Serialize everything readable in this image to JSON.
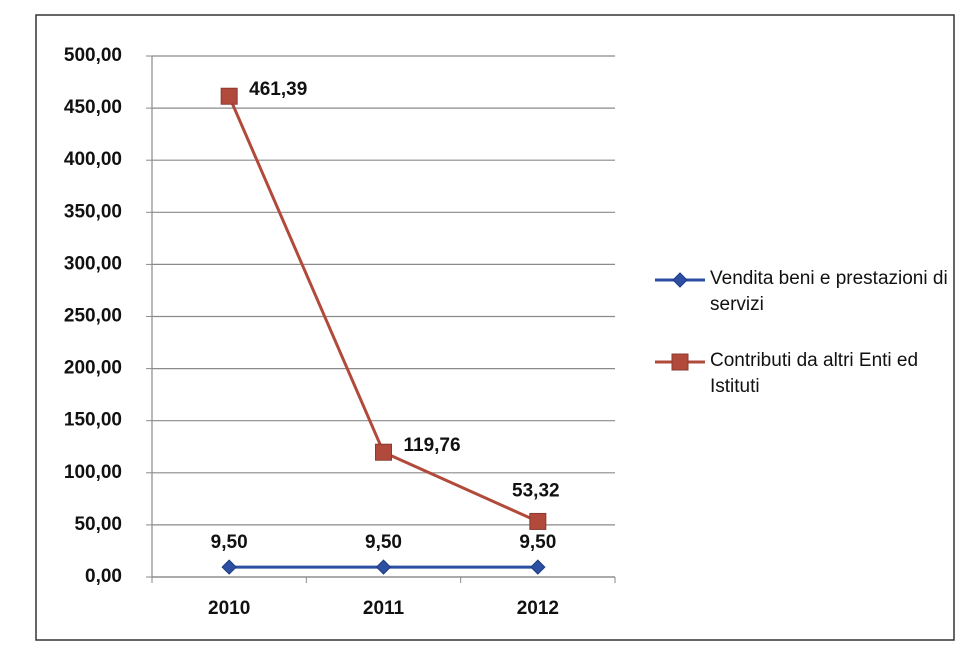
{
  "chart_data": {
    "type": "line",
    "categories": [
      "2010",
      "2011",
      "2012"
    ],
    "series": [
      {
        "name": "Vendita beni e prestazioni di servizi",
        "color": "#2c4fa3",
        "marker": "diamond",
        "values": [
          9.5,
          9.5,
          9.5
        ],
        "value_labels": [
          "9,50",
          "9,50",
          "9,50"
        ]
      },
      {
        "name": "Contributi da altri Enti ed Istituti",
        "color": "#b24a3c",
        "marker": "square",
        "values": [
          461.39,
          119.76,
          53.32
        ],
        "value_labels": [
          "461,39",
          "119,76",
          "53,32"
        ]
      }
    ],
    "ylim": [
      0,
      500
    ],
    "yticks": [
      {
        "value": 0,
        "label": "0,00"
      },
      {
        "value": 50,
        "label": "50,00"
      },
      {
        "value": 100,
        "label": "100,00"
      },
      {
        "value": 150,
        "label": "150,00"
      },
      {
        "value": 200,
        "label": "200,00"
      },
      {
        "value": 250,
        "label": "250,00"
      },
      {
        "value": 300,
        "label": "300,00"
      },
      {
        "value": 350,
        "label": "350,00"
      },
      {
        "value": 400,
        "label": "400,00"
      },
      {
        "value": 450,
        "label": "450,00"
      },
      {
        "value": 500,
        "label": "500,00"
      }
    ],
    "grid": true,
    "legend": "right"
  }
}
